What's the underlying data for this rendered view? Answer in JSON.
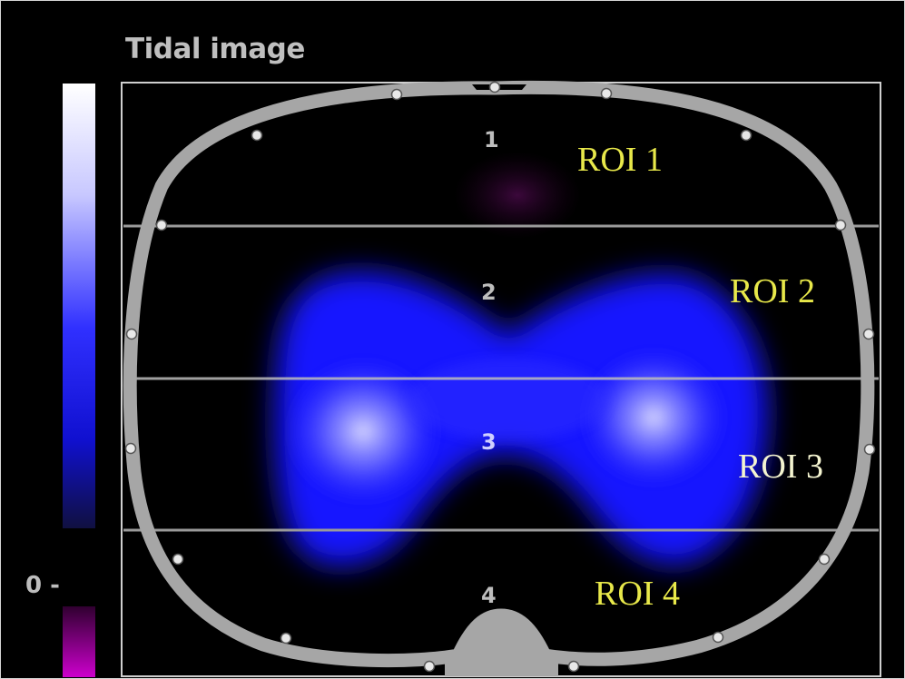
{
  "title": "Tidal image",
  "scale": {
    "zero_label": "0 -",
    "top_color": "#ffffff",
    "blue_color": "#0000ff",
    "low_color": "#101040",
    "below_zero_color": "#cc00cc"
  },
  "regions": [
    {
      "number": "1",
      "label": "ROI 1"
    },
    {
      "number": "2",
      "label": "ROI 2"
    },
    {
      "number": "3",
      "label": "ROI 3"
    },
    {
      "number": "4",
      "label": "ROI 4"
    }
  ],
  "colors": {
    "background": "#000000",
    "roi_label": "#e8e84a",
    "roi_label_highlight": "#ffffff",
    "number_label": "#bdbdbd",
    "thorax_outline": "#a6a6a6",
    "divider_line": "#9a9a9a",
    "electrode": "#e8e8e8",
    "ventilation": "#1a1aff",
    "ventilation_peak": "#d8d8ff"
  }
}
